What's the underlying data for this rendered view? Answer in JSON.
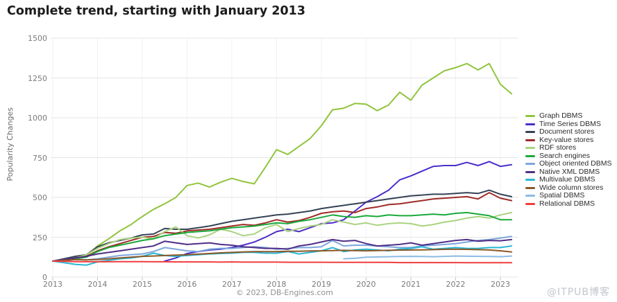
{
  "page": {
    "title": "Complete trend, starting with January 2013",
    "footer": "© 2023, DB-Engines.com",
    "watermark": "@ITPUB博客"
  },
  "chart_data": {
    "type": "line",
    "title": "Complete trend, starting with January 2013",
    "xlabel": "",
    "ylabel": "Popularity Changes",
    "ylim": [
      0,
      1500
    ],
    "xlim": [
      2013,
      2023.4
    ],
    "grid": true,
    "legend_position": "right",
    "y_ticks": [
      0,
      250,
      500,
      750,
      1000,
      1250,
      1500
    ],
    "x_ticks": [
      2013,
      2014,
      2015,
      2016,
      2017,
      2018,
      2019,
      2020,
      2021,
      2022,
      2023
    ],
    "x": [
      2013,
      2013.25,
      2013.5,
      2013.75,
      2014,
      2014.25,
      2014.5,
      2014.75,
      2015,
      2015.25,
      2015.5,
      2015.75,
      2016,
      2016.25,
      2016.5,
      2016.75,
      2017,
      2017.25,
      2017.5,
      2017.75,
      2018,
      2018.25,
      2018.5,
      2018.75,
      2019,
      2019.25,
      2019.5,
      2019.75,
      2020,
      2020.25,
      2020.5,
      2020.75,
      2021,
      2021.25,
      2021.5,
      2021.75,
      2022,
      2022.25,
      2022.5,
      2022.75,
      2023,
      2023.25
    ],
    "series": [
      {
        "name": "Graph DBMS",
        "color": "#90c43c",
        "values": [
          100,
          108,
          118,
          135,
          195,
          240,
          290,
          330,
          380,
          425,
          460,
          500,
          575,
          590,
          565,
          595,
          620,
          600,
          585,
          690,
          800,
          770,
          820,
          870,
          950,
          1050,
          1060,
          1090,
          1085,
          1045,
          1080,
          1160,
          1110,
          1205,
          1250,
          1295,
          1315,
          1340,
          1300,
          1340,
          1210,
          1150
        ]
      },
      {
        "name": "Time Series DBMS",
        "color": "#4b2dc9",
        "values": [
          null,
          null,
          null,
          null,
          null,
          null,
          null,
          null,
          null,
          null,
          100,
          120,
          148,
          160,
          170,
          175,
          185,
          200,
          220,
          250,
          285,
          300,
          285,
          310,
          335,
          340,
          360,
          415,
          470,
          505,
          545,
          610,
          635,
          665,
          695,
          700,
          700,
          720,
          700,
          725,
          695,
          705
        ]
      },
      {
        "name": "Document stores",
        "color": "#344254",
        "values": [
          100,
          115,
          130,
          140,
          190,
          215,
          230,
          245,
          265,
          270,
          305,
          300,
          300,
          310,
          320,
          335,
          350,
          360,
          370,
          380,
          390,
          395,
          405,
          415,
          430,
          440,
          450,
          460,
          470,
          480,
          490,
          500,
          510,
          515,
          520,
          520,
          525,
          530,
          525,
          545,
          520,
          505
        ]
      },
      {
        "name": "Key-value stores",
        "color": "#9e2a25",
        "values": [
          100,
          110,
          120,
          130,
          165,
          190,
          210,
          230,
          250,
          255,
          280,
          275,
          290,
          295,
          300,
          310,
          320,
          330,
          325,
          340,
          360,
          345,
          355,
          375,
          400,
          410,
          415,
          405,
          430,
          440,
          455,
          460,
          470,
          480,
          490,
          495,
          500,
          505,
          490,
          530,
          495,
          480
        ]
      },
      {
        "name": "RDF stores",
        "color": "#aad37f",
        "values": [
          100,
          110,
          120,
          140,
          180,
          210,
          235,
          245,
          250,
          240,
          285,
          315,
          260,
          245,
          265,
          300,
          285,
          260,
          270,
          310,
          330,
          285,
          305,
          320,
          330,
          360,
          345,
          330,
          340,
          325,
          335,
          340,
          335,
          320,
          330,
          345,
          355,
          370,
          380,
          370,
          390,
          405
        ]
      },
      {
        "name": "Search engines",
        "color": "#18a93a",
        "values": [
          100,
          105,
          115,
          125,
          160,
          185,
          200,
          215,
          230,
          240,
          260,
          270,
          280,
          285,
          290,
          300,
          310,
          315,
          320,
          330,
          340,
          335,
          350,
          360,
          375,
          390,
          380,
          375,
          385,
          380,
          390,
          385,
          385,
          390,
          395,
          390,
          400,
          405,
          395,
          385,
          360,
          360
        ]
      },
      {
        "name": "Object oriented DBMS",
        "color": "#7ba6db",
        "values": [
          100,
          105,
          110,
          108,
          115,
          125,
          135,
          140,
          145,
          160,
          185,
          175,
          165,
          160,
          175,
          180,
          180,
          185,
          190,
          185,
          175,
          180,
          185,
          185,
          190,
          230,
          195,
          200,
          200,
          195,
          190,
          185,
          185,
          195,
          200,
          205,
          210,
          220,
          230,
          235,
          245,
          255
        ]
      },
      {
        "name": "Native XML DBMS",
        "color": "#4f2d87",
        "values": [
          100,
          110,
          120,
          130,
          145,
          155,
          165,
          175,
          185,
          195,
          225,
          215,
          205,
          210,
          215,
          205,
          200,
          190,
          185,
          180,
          180,
          175,
          195,
          205,
          220,
          235,
          225,
          230,
          210,
          195,
          200,
          205,
          215,
          200,
          210,
          220,
          230,
          235,
          225,
          230,
          228,
          235
        ]
      },
      {
        "name": "Multivalue DBMS",
        "color": "#27b6d3",
        "values": [
          100,
          90,
          80,
          75,
          95,
          105,
          115,
          120,
          130,
          150,
          135,
          130,
          135,
          140,
          145,
          148,
          150,
          155,
          155,
          150,
          150,
          160,
          145,
          155,
          165,
          185,
          160,
          170,
          175,
          170,
          165,
          175,
          180,
          190,
          175,
          180,
          185,
          180,
          180,
          185,
          185,
          195
        ]
      },
      {
        "name": "Wide column stores",
        "color": "#8a5827",
        "values": [
          100,
          105,
          110,
          108,
          110,
          115,
          120,
          125,
          130,
          132,
          135,
          138,
          140,
          144,
          148,
          152,
          155,
          158,
          160,
          160,
          160,
          162,
          162,
          164,
          165,
          166,
          168,
          166,
          165,
          166,
          168,
          169,
          170,
          171,
          172,
          174,
          175,
          174,
          172,
          170,
          165,
          158
        ]
      },
      {
        "name": "Spatial DBMS",
        "color": "#8cbae4",
        "values": [
          null,
          null,
          null,
          null,
          null,
          null,
          null,
          null,
          null,
          null,
          null,
          null,
          null,
          null,
          null,
          null,
          null,
          null,
          null,
          null,
          null,
          null,
          null,
          null,
          null,
          null,
          115,
          118,
          125,
          126,
          128,
          129,
          130,
          129,
          128,
          130,
          132,
          131,
          130,
          129,
          128,
          132
        ]
      },
      {
        "name": "Relational DBMS",
        "color": "#f03c3c",
        "values": [
          100,
          99,
          97,
          96,
          96,
          96,
          97,
          97,
          97,
          96,
          96,
          95,
          95,
          95,
          95,
          94,
          95,
          94,
          94,
          94,
          94,
          93,
          93,
          93,
          93,
          92,
          92,
          92,
          92,
          92,
          92,
          91,
          91,
          91,
          91,
          91,
          91,
          90,
          90,
          90,
          90,
          90
        ]
      }
    ],
    "axis_colors": {
      "gridline": "#e5e5e5",
      "vertical_gridline": "#eef2f7",
      "tick_mark": "#b6c6dd",
      "tick_label": "#7a7a7a"
    }
  }
}
